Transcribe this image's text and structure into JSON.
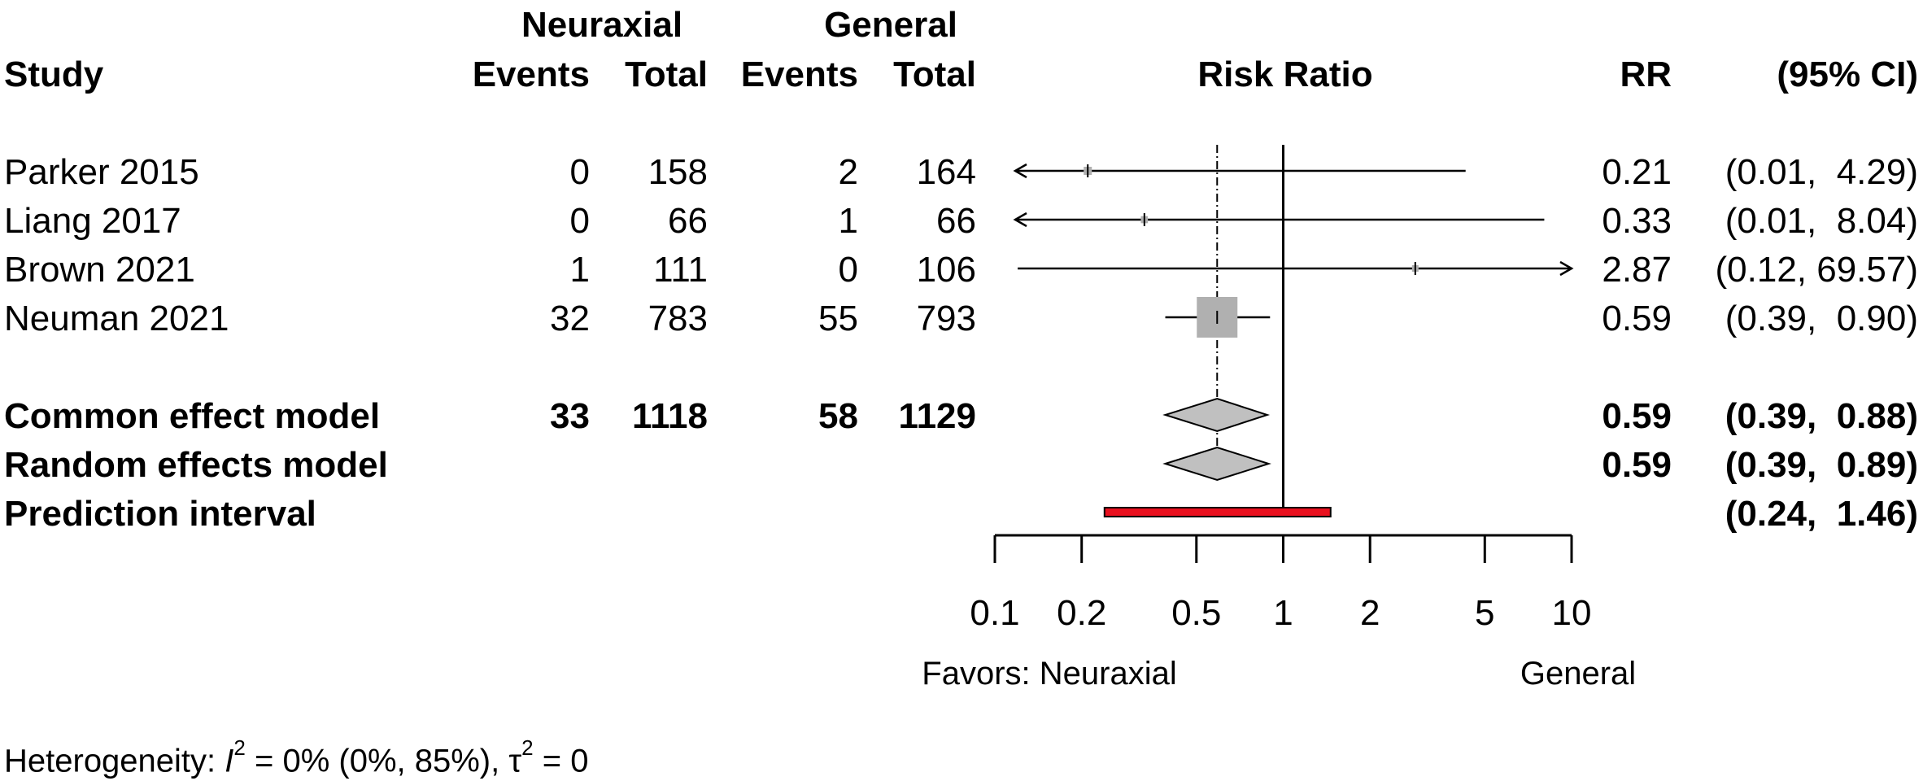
{
  "header": {
    "group1": "Neuraxial",
    "group2": "General",
    "study": "Study",
    "events1": "Events",
    "total1": "Total",
    "events2": "Events",
    "total2": "Total",
    "risk_ratio": "Risk Ratio",
    "rr": "RR",
    "ci": "(95% CI)"
  },
  "studies": [
    {
      "name": "Parker 2015",
      "events1": "0",
      "total1": "158",
      "events2": "2",
      "total2": "164",
      "rr": "0.21",
      "ci": "(0.01,  4.29)"
    },
    {
      "name": "Liang 2017",
      "events1": "0",
      "total1": "66",
      "events2": "1",
      "total2": "66",
      "rr": "0.33",
      "ci": "(0.01,  8.04)"
    },
    {
      "name": "Brown 2021",
      "events1": "1",
      "total1": "111",
      "events2": "0",
      "total2": "106",
      "rr": "2.87",
      "ci": "(0.12, 69.57)"
    },
    {
      "name": "Neuman 2021",
      "events1": "32",
      "total1": "783",
      "events2": "55",
      "total2": "793",
      "rr": "0.59",
      "ci": "(0.39,  0.90)"
    }
  ],
  "pooled": [
    {
      "name": "Common effect model",
      "events1": "33",
      "total1": "1118",
      "events2": "58",
      "total2": "1129",
      "rr": "0.59",
      "ci": "(0.39,  0.88)"
    },
    {
      "name": "Random effects model",
      "events1": "",
      "total1": "",
      "events2": "",
      "total2": "",
      "rr": "0.59",
      "ci": "(0.39,  0.89)"
    },
    {
      "name": "Prediction interval",
      "events1": "",
      "total1": "",
      "events2": "",
      "total2": "",
      "rr": "",
      "ci": "(0.24,  1.46)"
    }
  ],
  "axis": {
    "favors_left": "Favors: Neuraxial",
    "favors_right": "General"
  },
  "heterogeneity": {
    "prefix": "Heterogeneity: ",
    "i": "I",
    "sup2": "2",
    "mid": " = 0% (0%, 85%), ",
    "tau": "τ",
    "sup2b": "2",
    "suffix": " = 0"
  },
  "colors": {
    "square": "#b0b0b0",
    "diamond": "#c0c0c0",
    "prediction": "#e8101e"
  },
  "chart_data": {
    "type": "forest",
    "scale": "log",
    "xlim": [
      0.1,
      10
    ],
    "ticks": [
      0.1,
      0.2,
      0.5,
      1,
      2,
      5,
      10
    ],
    "tick_labels": [
      "0.1",
      "0.2",
      "0.5",
      "1",
      "2",
      "5",
      "10"
    ],
    "reference_line": 1,
    "pooled_line": 0.59,
    "studies": [
      {
        "name": "Parker 2015",
        "rr": 0.21,
        "lower": 0.01,
        "upper": 4.29,
        "weight": 0.04
      },
      {
        "name": "Liang 2017",
        "rr": 0.33,
        "lower": 0.01,
        "upper": 8.04,
        "weight": 0.03
      },
      {
        "name": "Brown 2021",
        "rr": 2.87,
        "lower": 0.12,
        "upper": 69.57,
        "weight": 0.02
      },
      {
        "name": "Neuman 2021",
        "rr": 0.59,
        "lower": 0.39,
        "upper": 0.9,
        "weight": 1.0
      }
    ],
    "common_effect": {
      "rr": 0.59,
      "lower": 0.39,
      "upper": 0.88
    },
    "random_effects": {
      "rr": 0.59,
      "lower": 0.39,
      "upper": 0.89
    },
    "prediction_interval": {
      "lower": 0.24,
      "upper": 1.46
    }
  }
}
